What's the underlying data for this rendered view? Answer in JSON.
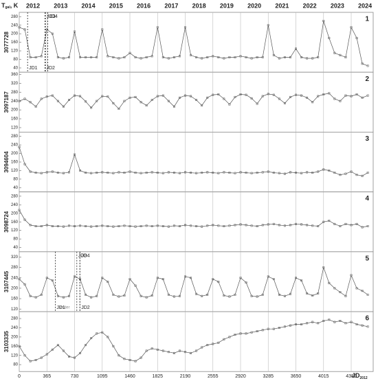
{
  "chart_data": [
    {
      "type": "line",
      "label": "1",
      "ylabel": "3077728",
      "color": "#555555",
      "y_title_main": "T",
      "y_title_sub": "gal",
      "y_title_rest": ", K",
      "x2ticks": [
        {
          "value": 182,
          "label": "2012"
        },
        {
          "value": 547,
          "label": "2013"
        },
        {
          "value": 912,
          "label": "2014"
        },
        {
          "value": 1277,
          "label": "2015"
        },
        {
          "value": 1642,
          "label": "2016"
        },
        {
          "value": 2007,
          "label": "2017"
        },
        {
          "value": 2372,
          "label": "2018"
        },
        {
          "value": 2737,
          "label": "2019"
        },
        {
          "value": 3102,
          "label": "2020"
        },
        {
          "value": 3467,
          "label": "2021"
        },
        {
          "value": 3832,
          "label": "2022"
        },
        {
          "value": 4197,
          "label": "2023"
        },
        {
          "value": 4562,
          "label": "2024"
        }
      ],
      "xlim": [
        0,
        4670
      ],
      "ylim": [
        20,
        300
      ],
      "yticks": [
        40,
        80,
        120,
        160,
        200,
        240,
        280
      ],
      "x": [
        0,
        73,
        146,
        219,
        292,
        365,
        438,
        511,
        584,
        657,
        730,
        803,
        876,
        949,
        1022,
        1095,
        1168,
        1241,
        1314,
        1387,
        1460,
        1533,
        1606,
        1679,
        1752,
        1825,
        1898,
        1971,
        2044,
        2117,
        2190,
        2263,
        2336,
        2409,
        2482,
        2555,
        2628,
        2701,
        2774,
        2847,
        2920,
        2993,
        3066,
        3139,
        3212,
        3285,
        3358,
        3431,
        3504,
        3577,
        3650,
        3723,
        3796,
        3869,
        3942,
        4015,
        4088,
        4161,
        4234,
        4307,
        4380,
        4453,
        4526,
        4599
      ],
      "values": [
        230,
        220,
        90,
        90,
        95,
        220,
        200,
        90,
        85,
        90,
        210,
        90,
        90,
        90,
        90,
        220,
        95,
        90,
        85,
        90,
        110,
        90,
        85,
        90,
        95,
        230,
        90,
        85,
        90,
        95,
        230,
        100,
        90,
        85,
        90,
        95,
        90,
        85,
        90,
        90,
        95,
        90,
        85,
        90,
        90,
        240,
        100,
        85,
        90,
        90,
        130,
        90,
        85,
        85,
        90,
        260,
        180,
        110,
        100,
        90,
        230,
        180,
        60,
        50
      ],
      "annotations": [
        {
          "text": "JD1",
          "x": 110,
          "pos": "bottom",
          "line": true
        },
        {
          "text": "JD2",
          "x": 340,
          "pos": "bottom",
          "line": true
        },
        {
          "text": "JD3",
          "x": 345,
          "pos": "top",
          "line": true
        },
        {
          "text": "JD4",
          "x": 375,
          "pos": "top",
          "line": true
        }
      ]
    },
    {
      "type": "line",
      "label": "2",
      "ylabel": "3097187",
      "color": "#555555",
      "xlim": [
        0,
        4670
      ],
      "ylim": [
        100,
        370
      ],
      "yticks": [
        120,
        160,
        200,
        240,
        280,
        320,
        360
      ],
      "x": [
        0,
        73,
        146,
        219,
        292,
        365,
        438,
        511,
        584,
        657,
        730,
        803,
        876,
        949,
        1022,
        1095,
        1168,
        1241,
        1314,
        1387,
        1460,
        1533,
        1606,
        1679,
        1752,
        1825,
        1898,
        1971,
        2044,
        2117,
        2190,
        2263,
        2336,
        2409,
        2482,
        2555,
        2628,
        2701,
        2774,
        2847,
        2920,
        2993,
        3066,
        3139,
        3212,
        3285,
        3358,
        3431,
        3504,
        3577,
        3650,
        3723,
        3796,
        3869,
        3942,
        4015,
        4088,
        4161,
        4234,
        4307,
        4380,
        4453,
        4526,
        4599
      ],
      "values": [
        240,
        250,
        235,
        215,
        250,
        260,
        265,
        240,
        215,
        245,
        265,
        262,
        238,
        210,
        240,
        262,
        260,
        230,
        205,
        240,
        255,
        258,
        235,
        220,
        245,
        262,
        265,
        240,
        215,
        255,
        265,
        262,
        245,
        220,
        255,
        268,
        270,
        250,
        225,
        258,
        270,
        268,
        252,
        228,
        262,
        272,
        268,
        250,
        230,
        258,
        268,
        265,
        255,
        235,
        262,
        270,
        275,
        250,
        240,
        265,
        262,
        270,
        255,
        265
      ]
    },
    {
      "type": "line",
      "label": "3",
      "ylabel": "3094604",
      "color": "#555555",
      "xlim": [
        0,
        4670
      ],
      "ylim": [
        20,
        300
      ],
      "yticks": [
        40,
        80,
        120,
        160,
        200,
        240,
        280
      ],
      "x": [
        0,
        73,
        146,
        219,
        292,
        365,
        438,
        511,
        584,
        657,
        730,
        803,
        876,
        949,
        1022,
        1095,
        1168,
        1241,
        1314,
        1387,
        1460,
        1533,
        1606,
        1679,
        1752,
        1825,
        1898,
        1971,
        2044,
        2117,
        2190,
        2263,
        2336,
        2409,
        2482,
        2555,
        2628,
        2701,
        2774,
        2847,
        2920,
        2993,
        3066,
        3139,
        3212,
        3285,
        3358,
        3431,
        3504,
        3577,
        3650,
        3723,
        3796,
        3869,
        3942,
        4015,
        4088,
        4161,
        4234,
        4307,
        4380,
        4453,
        4526,
        4599
      ],
      "values": [
        230,
        150,
        115,
        110,
        108,
        112,
        115,
        110,
        108,
        112,
        195,
        120,
        110,
        108,
        110,
        112,
        110,
        108,
        112,
        110,
        115,
        110,
        108,
        110,
        112,
        110,
        108,
        112,
        110,
        108,
        112,
        110,
        108,
        110,
        112,
        110,
        108,
        112,
        110,
        108,
        112,
        110,
        108,
        110,
        112,
        115,
        110,
        108,
        105,
        112,
        110,
        108,
        112,
        110,
        115,
        125,
        120,
        110,
        100,
        105,
        115,
        100,
        95,
        110
      ]
    },
    {
      "type": "line",
      "label": "4",
      "ylabel": "3098724",
      "color": "#555555",
      "xlim": [
        0,
        4670
      ],
      "ylim": [
        20,
        300
      ],
      "yticks": [
        40,
        80,
        120,
        160,
        200,
        240,
        280
      ],
      "x": [
        0,
        73,
        146,
        219,
        292,
        365,
        438,
        511,
        584,
        657,
        730,
        803,
        876,
        949,
        1022,
        1095,
        1168,
        1241,
        1314,
        1387,
        1460,
        1533,
        1606,
        1679,
        1752,
        1825,
        1898,
        1971,
        2044,
        2117,
        2190,
        2263,
        2336,
        2409,
        2482,
        2555,
        2628,
        2701,
        2774,
        2847,
        2920,
        2993,
        3066,
        3139,
        3212,
        3285,
        3358,
        3431,
        3504,
        3577,
        3650,
        3723,
        3796,
        3869,
        3942,
        4015,
        4088,
        4161,
        4234,
        4307,
        4380,
        4453,
        4526,
        4599
      ],
      "values": [
        215,
        170,
        145,
        140,
        140,
        145,
        140,
        140,
        138,
        142,
        140,
        142,
        140,
        138,
        140,
        142,
        140,
        138,
        140,
        142,
        140,
        138,
        140,
        142,
        140,
        142,
        140,
        138,
        142,
        140,
        145,
        142,
        140,
        138,
        142,
        145,
        142,
        140,
        142,
        145,
        148,
        145,
        142,
        140,
        145,
        148,
        150,
        145,
        142,
        145,
        150,
        148,
        145,
        142,
        140,
        160,
        165,
        150,
        140,
        150,
        145,
        150,
        135,
        140
      ]
    },
    {
      "type": "line",
      "label": "5",
      "ylabel": "3107445",
      "color": "#555555",
      "xlim": [
        0,
        4670
      ],
      "ylim": [
        110,
        340
      ],
      "yticks": [
        120,
        160,
        200,
        240,
        280,
        320
      ],
      "x": [
        0,
        73,
        146,
        219,
        292,
        365,
        438,
        511,
        584,
        657,
        730,
        803,
        876,
        949,
        1022,
        1095,
        1168,
        1241,
        1314,
        1387,
        1460,
        1533,
        1606,
        1679,
        1752,
        1825,
        1898,
        1971,
        2044,
        2117,
        2190,
        2263,
        2336,
        2409,
        2482,
        2555,
        2628,
        2701,
        2774,
        2847,
        2920,
        2993,
        3066,
        3139,
        3212,
        3285,
        3358,
        3431,
        3504,
        3577,
        3650,
        3723,
        3796,
        3869,
        3942,
        4015,
        4088,
        4161,
        4234,
        4307,
        4380,
        4453,
        4526,
        4599
      ],
      "values": [
        235,
        215,
        170,
        165,
        175,
        240,
        230,
        170,
        165,
        170,
        245,
        235,
        175,
        165,
        170,
        240,
        225,
        175,
        168,
        172,
        235,
        210,
        170,
        165,
        172,
        240,
        235,
        175,
        168,
        170,
        245,
        240,
        178,
        170,
        175,
        235,
        225,
        172,
        168,
        175,
        240,
        222,
        170,
        168,
        175,
        245,
        235,
        175,
        170,
        178,
        240,
        230,
        180,
        172,
        180,
        280,
        220,
        200,
        185,
        170,
        250,
        200,
        190,
        175
      ],
      "annotations": [
        {
          "text": "JD1",
          "x": 475,
          "pos": "bottom",
          "line": true
        },
        {
          "text": "water",
          "x": 600,
          "pos": "bottom",
          "line": false
        },
        {
          "text": "JD2",
          "x": 800,
          "pos": "bottom",
          "line": true
        },
        {
          "text": "JD3",
          "x": 760,
          "pos": "top",
          "line": true
        },
        {
          "text": "JD4",
          "x": 800,
          "pos": "top",
          "line": true
        }
      ]
    },
    {
      "type": "line",
      "label": "6",
      "ylabel": "3103335",
      "color": "#555555",
      "xlabel_main": "JD",
      "xlabel_sub": "2012",
      "xlim": [
        0,
        4670
      ],
      "ylim": [
        50,
        310
      ],
      "yticks": [
        80,
        120,
        160,
        200,
        240,
        280
      ],
      "xticks": [
        0,
        365,
        730,
        1095,
        1460,
        1825,
        2190,
        2555,
        2920,
        3285,
        3650,
        4015,
        4380
      ],
      "x": [
        0,
        73,
        146,
        219,
        292,
        365,
        438,
        511,
        584,
        657,
        730,
        803,
        876,
        949,
        1022,
        1095,
        1168,
        1241,
        1314,
        1387,
        1460,
        1533,
        1606,
        1679,
        1752,
        1825,
        1898,
        1971,
        2044,
        2117,
        2190,
        2263,
        2336,
        2409,
        2482,
        2555,
        2628,
        2701,
        2774,
        2847,
        2920,
        2993,
        3066,
        3139,
        3212,
        3285,
        3358,
        3431,
        3504,
        3577,
        3650,
        3723,
        3796,
        3869,
        3942,
        4015,
        4088,
        4161,
        4234,
        4307,
        4380,
        4453,
        4526,
        4599
      ],
      "values": [
        160,
        120,
        95,
        100,
        110,
        125,
        145,
        165,
        140,
        115,
        110,
        130,
        165,
        195,
        215,
        220,
        200,
        160,
        120,
        105,
        100,
        95,
        110,
        140,
        150,
        145,
        140,
        135,
        130,
        140,
        135,
        130,
        140,
        155,
        165,
        170,
        175,
        190,
        200,
        210,
        215,
        215,
        220,
        225,
        230,
        235,
        235,
        240,
        245,
        250,
        255,
        255,
        260,
        265,
        260,
        270,
        275,
        265,
        270,
        260,
        265,
        255,
        250,
        245
      ]
    }
  ]
}
